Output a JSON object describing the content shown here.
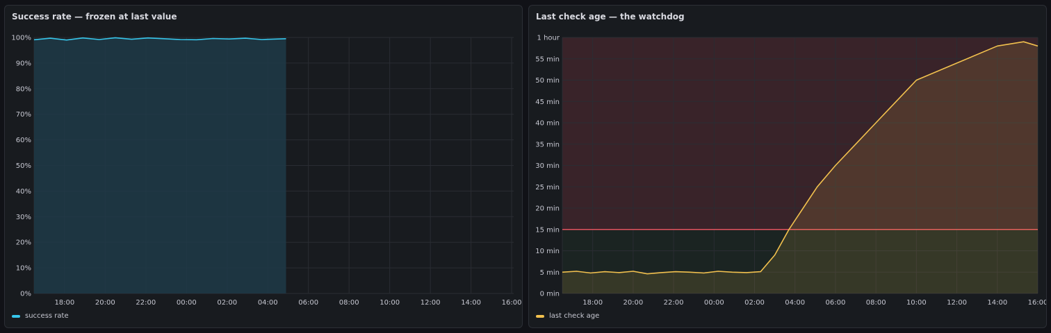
{
  "panels": [
    {
      "title": "Success rate — frozen at last value",
      "legend": "success rate",
      "color": "#37c6eb",
      "fill": "#1f3a48"
    },
    {
      "title": "Last check age — the watchdog",
      "legend": "last check age",
      "color": "#f2c14e",
      "threshold_color": "#e5535f"
    }
  ],
  "chart_data": [
    {
      "type": "area",
      "title": "Success rate — frozen at last value",
      "x_unit": "hour",
      "x_range": [
        16.5,
        40.1
      ],
      "x_ticks": [
        "18:00",
        "20:00",
        "22:00",
        "00:00",
        "02:00",
        "04:00",
        "06:00",
        "08:00",
        "10:00",
        "12:00",
        "14:00",
        "16:00"
      ],
      "y_ticks": [
        "0%",
        "10%",
        "20%",
        "30%",
        "40%",
        "50%",
        "60%",
        "70%",
        "80%",
        "90%",
        "100%"
      ],
      "ylim": [
        0,
        100
      ],
      "grid": true,
      "legend_position": "bottom-left",
      "series": [
        {
          "name": "success rate",
          "x": [
            16.5,
            17.3,
            18.1,
            18.9,
            19.7,
            20.5,
            21.3,
            22.1,
            22.9,
            23.7,
            24.5,
            25.3,
            26.1,
            26.9,
            27.7,
            28.5,
            28.9
          ],
          "y": [
            99.1,
            99.7,
            99.0,
            99.8,
            99.2,
            99.9,
            99.3,
            99.8,
            99.5,
            99.2,
            99.1,
            99.6,
            99.4,
            99.7,
            99.2,
            99.4,
            99.5
          ]
        }
      ]
    },
    {
      "type": "area",
      "title": "Last check age — the watchdog",
      "x_unit": "hour",
      "x_range": [
        16.5,
        40.0
      ],
      "x_ticks": [
        "18:00",
        "20:00",
        "22:00",
        "00:00",
        "02:00",
        "04:00",
        "06:00",
        "08:00",
        "10:00",
        "12:00",
        "14:00",
        "16:00"
      ],
      "y_ticks": [
        "0 min",
        "5 min",
        "10 min",
        "15 min",
        "20 min",
        "25 min",
        "30 min",
        "35 min",
        "40 min",
        "45 min",
        "50 min",
        "55 min",
        "1 hour"
      ],
      "ylim": [
        0,
        60
      ],
      "threshold": 15,
      "grid": true,
      "legend_position": "bottom-left",
      "series": [
        {
          "name": "last check age",
          "x": [
            16.5,
            17.2,
            17.9,
            18.6,
            19.3,
            20.0,
            20.7,
            21.4,
            22.1,
            22.8,
            23.5,
            24.2,
            24.9,
            25.6,
            26.3,
            27.0,
            27.7,
            28.4,
            29.1,
            30.0,
            31.0,
            32.0,
            34.0,
            36.0,
            38.0,
            39.3,
            40.0
          ],
          "y": [
            5.0,
            5.2,
            4.8,
            5.1,
            4.9,
            5.2,
            4.6,
            4.9,
            5.1,
            5.0,
            4.8,
            5.2,
            5.0,
            4.9,
            5.1,
            9.0,
            15.0,
            20.0,
            25.0,
            30.0,
            35.0,
            40.0,
            50.0,
            54.0,
            58.0,
            59.0,
            58.0
          ]
        }
      ]
    }
  ]
}
